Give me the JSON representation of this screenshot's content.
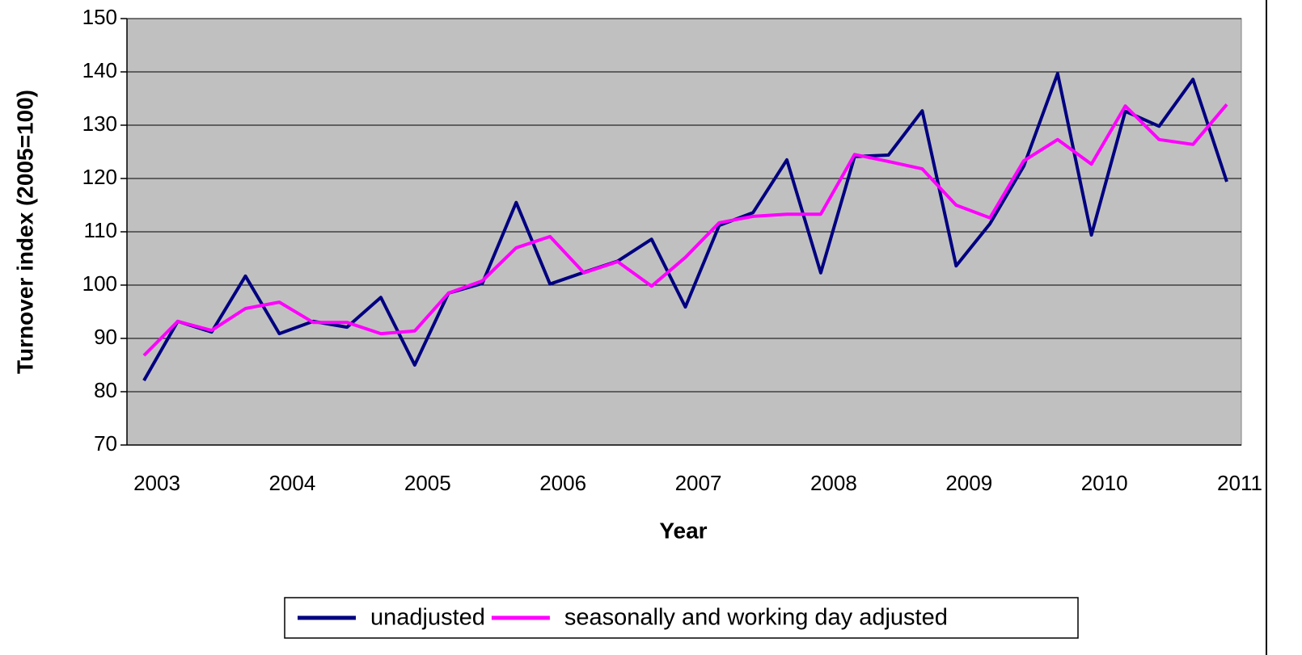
{
  "chart_data": {
    "type": "line",
    "x_label": "Year",
    "y_label": "Turnover index (2005=100)",
    "categories": [
      "2003",
      null,
      null,
      null,
      "2004",
      null,
      null,
      null,
      "2005",
      null,
      null,
      null,
      "2006",
      null,
      null,
      null,
      "2007",
      null,
      null,
      null,
      "2008",
      null,
      null,
      null,
      "2009",
      null,
      null,
      null,
      "2010",
      null,
      null,
      null,
      "2011"
    ],
    "series": [
      {
        "name": "unadjusted",
        "color": "#000080",
        "values": [
          82.1,
          93.2,
          91.2,
          101.7,
          90.9,
          93.2,
          92.1,
          97.7,
          85.0,
          98.5,
          100.3,
          115.5,
          100.2,
          102.4,
          104.5,
          108.6,
          95.9,
          111.2,
          113.6,
          123.5,
          102.3,
          124.1,
          124.4,
          132.7,
          103.6,
          111.5,
          122.3,
          139.7,
          109.4,
          132.6,
          129.8,
          138.6,
          119.4
        ]
      },
      {
        "name": "seasonally and working day adjusted",
        "color": "#ff00ff",
        "values": [
          86.8,
          93.2,
          91.5,
          95.6,
          96.8,
          93.0,
          93.0,
          90.9,
          91.4,
          98.5,
          100.8,
          107.0,
          109.1,
          102.3,
          104.4,
          99.8,
          105.2,
          111.7,
          112.9,
          113.3,
          113.3,
          124.5,
          123.2,
          121.8,
          115.0,
          112.6,
          123.3,
          127.3,
          122.7,
          133.6,
          127.3,
          126.4,
          133.9
        ]
      }
    ],
    "ylim": [
      70,
      150
    ],
    "yticks": [
      70,
      80,
      90,
      100,
      110,
      120,
      130,
      140,
      150
    ],
    "grid": true,
    "background": "#c0c0c0",
    "legend": "bottom"
  }
}
